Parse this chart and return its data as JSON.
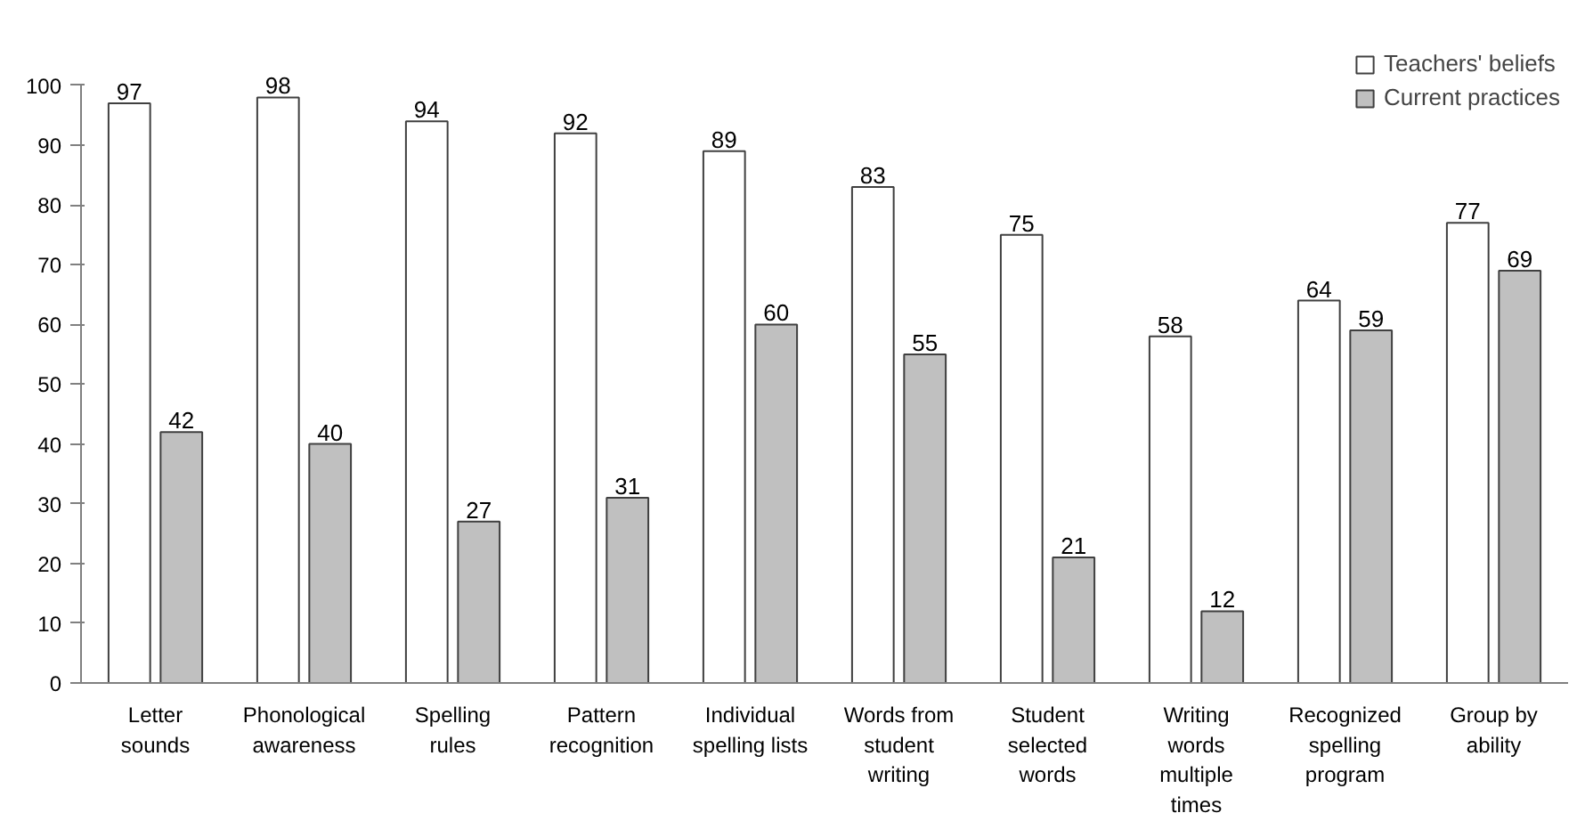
{
  "chart_data": {
    "type": "bar",
    "categories": [
      "Letter\nsounds",
      "Phonological\nawareness",
      "Spelling\nrules",
      "Pattern\nrecognition",
      "Individual\nspelling lists",
      "Words from\nstudent\nwriting",
      "Student\nselected\nwords",
      "Writing\nwords\nmultiple\ntimes",
      "Recognized\nspelling\nprogram",
      "Group by\nability"
    ],
    "series": [
      {
        "name": "Teachers' beliefs",
        "color": "#ffffff",
        "values": [
          97,
          98,
          94,
          92,
          89,
          83,
          75,
          58,
          64,
          77
        ]
      },
      {
        "name": "Current practices",
        "color": "#c0c0c0",
        "values": [
          42,
          40,
          27,
          31,
          60,
          55,
          21,
          12,
          59,
          69
        ]
      }
    ],
    "ylim": [
      0,
      100
    ],
    "yticks": [
      0,
      10,
      20,
      30,
      40,
      50,
      60,
      70,
      80,
      90,
      100
    ],
    "data_labels": true,
    "legend": "top right",
    "grid": false
  }
}
